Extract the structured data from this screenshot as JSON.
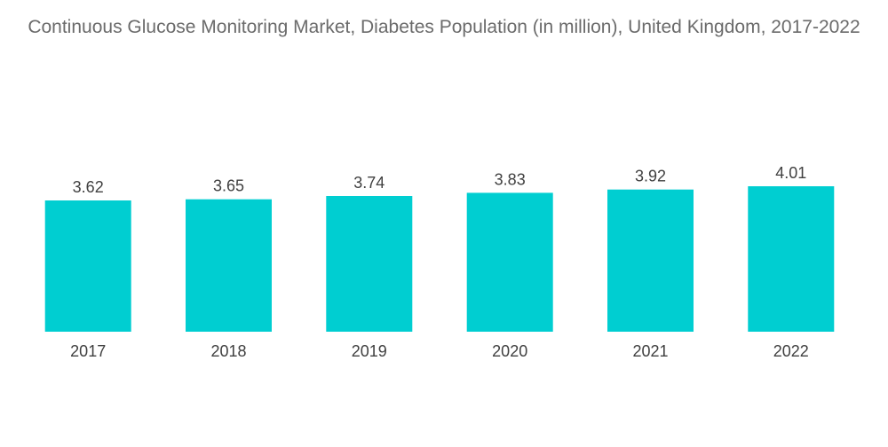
{
  "chart_data": {
    "type": "bar",
    "title": "Continuous Glucose Monitoring Market, Diabetes Population (in million), United Kingdom, 2017-2022",
    "categories": [
      "2017",
      "2018",
      "2019",
      "2020",
      "2021",
      "2022"
    ],
    "values": [
      3.62,
      3.65,
      3.74,
      3.83,
      3.92,
      4.01
    ],
    "data_labels": [
      "3.62",
      "3.65",
      "3.74",
      "3.83",
      "3.92",
      "4.01"
    ],
    "xlabel": "",
    "ylabel": "",
    "ylim": [
      0,
      4.01
    ],
    "grid": false,
    "legend": "none",
    "bar_color": "#00CED1"
  }
}
